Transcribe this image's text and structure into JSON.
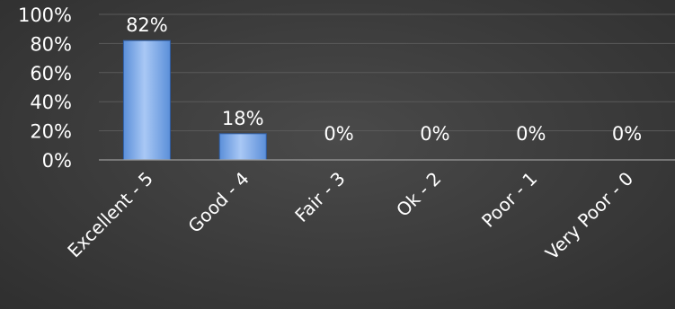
{
  "chart_data": {
    "type": "bar",
    "title": "",
    "xlabel": "",
    "ylabel": "",
    "categories": [
      "Excellent - 5",
      "Good - 4",
      "Fair - 3",
      "Ok - 2",
      "Poor - 1",
      "Very Poor - 0"
    ],
    "values": [
      82,
      18,
      0,
      0,
      0,
      0
    ],
    "data_labels": [
      "82%",
      "18%",
      "0%",
      "0%",
      "0%",
      "0%"
    ],
    "y_ticks": [
      0,
      20,
      40,
      60,
      80,
      100
    ],
    "y_tick_labels": [
      "0%",
      "20%",
      "40%",
      "60%",
      "80%",
      "100%"
    ],
    "ylim": [
      0,
      100
    ],
    "grid": true,
    "legend": "none",
    "colors": {
      "bar_top": "#a9c8f5",
      "bar_bottom": "#5b8fd9",
      "bar_edge": "#2f5fa8",
      "background": "#3b3b3b",
      "text": "#ffffff"
    }
  }
}
